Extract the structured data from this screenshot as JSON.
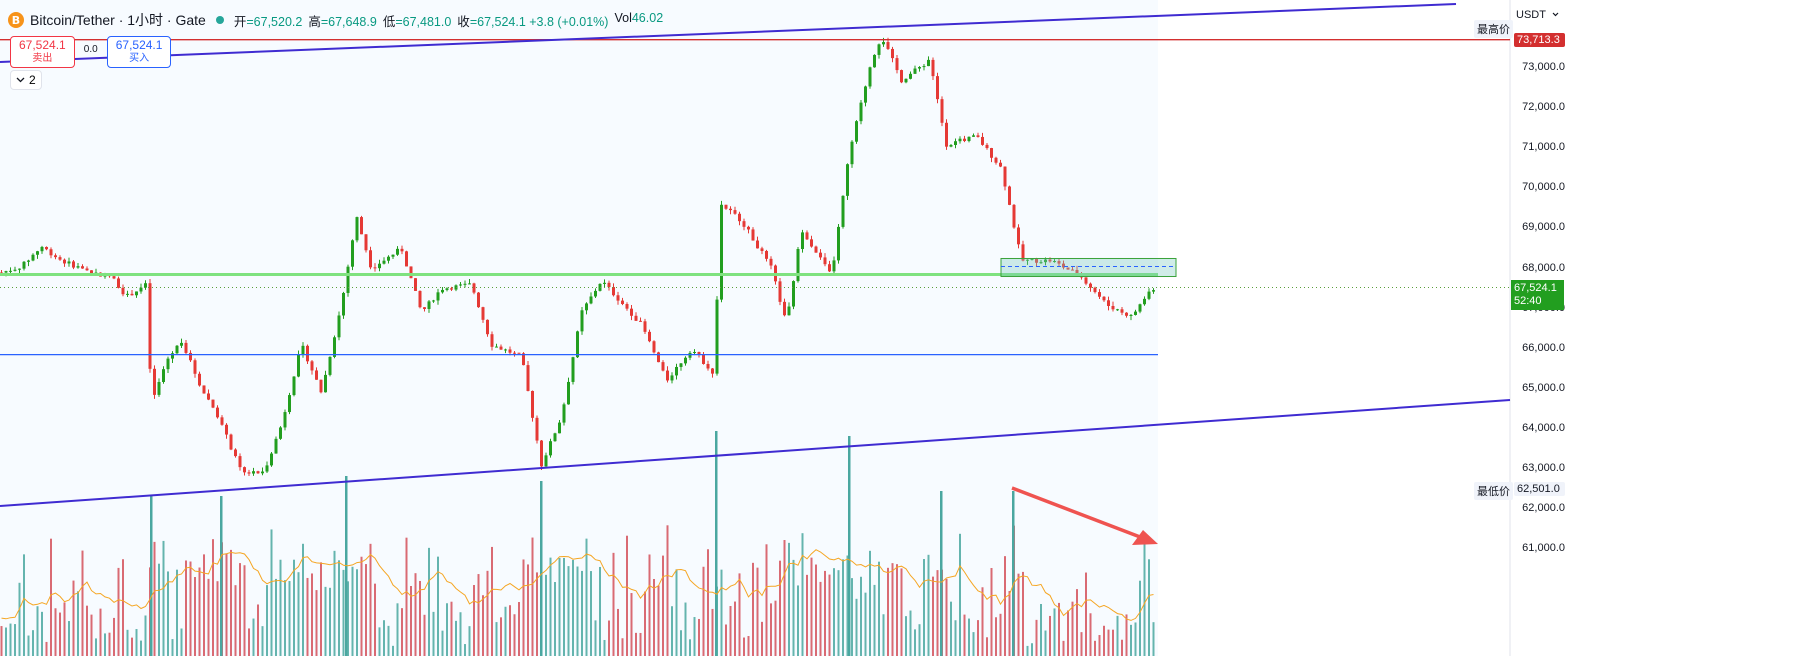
{
  "header": {
    "coin_icon": "B",
    "title": "Bitcoin/Tether · 1小时 · Gate",
    "status_color": "#26a69a",
    "ohlc": [
      {
        "k": "开",
        "v": "=67,520.2"
      },
      {
        "k": "高",
        "v": "=67,648.9"
      },
      {
        "k": "低",
        "v": "=67,481.0"
      },
      {
        "k": "收",
        "v": "=67,524.1 +3.8 (+0.01%)"
      },
      {
        "k": "Vol",
        "v": "46.02"
      }
    ]
  },
  "trade": {
    "sell_price": "67,524.1",
    "sell_label": "卖出",
    "spread": "0.0",
    "buy_price": "67,524.1",
    "buy_label": "买入"
  },
  "indicator_toggle": {
    "icon": "chevron-down-icon",
    "count": "2"
  },
  "axis": {
    "currency": "USDT",
    "high_label": "最高价",
    "high_value": "73,713.3",
    "low_label": "最低价",
    "low_value": "62,501.0",
    "current_price": "67,524.1",
    "countdown": "52:40"
  },
  "colors": {
    "up": "#229e1f",
    "down": "#e53935",
    "trendline": "#3f2bd1",
    "resistance": "#7fe27f",
    "support": "#2962ff",
    "high_line": "#d32f2f",
    "arrow": "#ef5350"
  },
  "chart_data": {
    "type": "candlestick",
    "interval": "1小时",
    "ylim": [
      60800,
      74500
    ],
    "y_ticks": [
      61000,
      62000,
      63000,
      64000,
      65000,
      66000,
      67000,
      68000,
      69000,
      70000,
      71000,
      72000,
      73000
    ],
    "y_tick_labels": [
      "61,000.0",
      "62,000.0",
      "63,000.0",
      "64,000.0",
      "65,000.0",
      "66,000.0",
      "67,000.0",
      "68,000.0",
      "69,000.0",
      "70,000.0",
      "71,000.0",
      "72,000.0",
      "73,000.0"
    ],
    "price_path": [
      [
        0,
        67900
      ],
      [
        20,
        68050
      ],
      [
        40,
        68550
      ],
      [
        60,
        68200
      ],
      [
        90,
        67900
      ],
      [
        110,
        67800
      ],
      [
        125,
        67300
      ],
      [
        145,
        67600
      ],
      [
        150,
        64600
      ],
      [
        165,
        65700
      ],
      [
        180,
        66200
      ],
      [
        200,
        65000
      ],
      [
        215,
        64400
      ],
      [
        240,
        62900
      ],
      [
        262,
        62900
      ],
      [
        280,
        64100
      ],
      [
        300,
        66100
      ],
      [
        320,
        64900
      ],
      [
        340,
        67100
      ],
      [
        355,
        69300
      ],
      [
        370,
        68000
      ],
      [
        400,
        68500
      ],
      [
        420,
        66900
      ],
      [
        440,
        67500
      ],
      [
        470,
        67600
      ],
      [
        490,
        66100
      ],
      [
        520,
        65800
      ],
      [
        540,
        63100
      ],
      [
        560,
        64300
      ],
      [
        580,
        66900
      ],
      [
        600,
        67700
      ],
      [
        640,
        66600
      ],
      [
        665,
        65200
      ],
      [
        690,
        66000
      ],
      [
        712,
        65400
      ],
      [
        720,
        69600
      ],
      [
        740,
        69200
      ],
      [
        770,
        68000
      ],
      [
        785,
        66600
      ],
      [
        800,
        69000
      ],
      [
        830,
        67800
      ],
      [
        848,
        70900
      ],
      [
        870,
        73200
      ],
      [
        880,
        73800
      ],
      [
        900,
        72700
      ],
      [
        928,
        73200
      ],
      [
        945,
        71100
      ],
      [
        975,
        71300
      ],
      [
        1000,
        70500
      ],
      [
        1020,
        68200
      ],
      [
        1050,
        68200
      ],
      [
        1080,
        67800
      ],
      [
        1105,
        67100
      ],
      [
        1130,
        66800
      ],
      [
        1150,
        67500
      ],
      [
        1156,
        67520
      ]
    ],
    "high": 73713.3,
    "low": 62501.0,
    "last_close": 67524.1,
    "levels": [
      {
        "name": "high",
        "price": 73713.3
      },
      {
        "name": "resistance",
        "price": 67850
      },
      {
        "name": "support",
        "price": 65850
      },
      {
        "name": "last",
        "price": 67524.1
      }
    ],
    "zone": {
      "from": 67800,
      "to": 68250
    },
    "volume_series": {
      "name": "Vol",
      "last": 46.02
    }
  }
}
